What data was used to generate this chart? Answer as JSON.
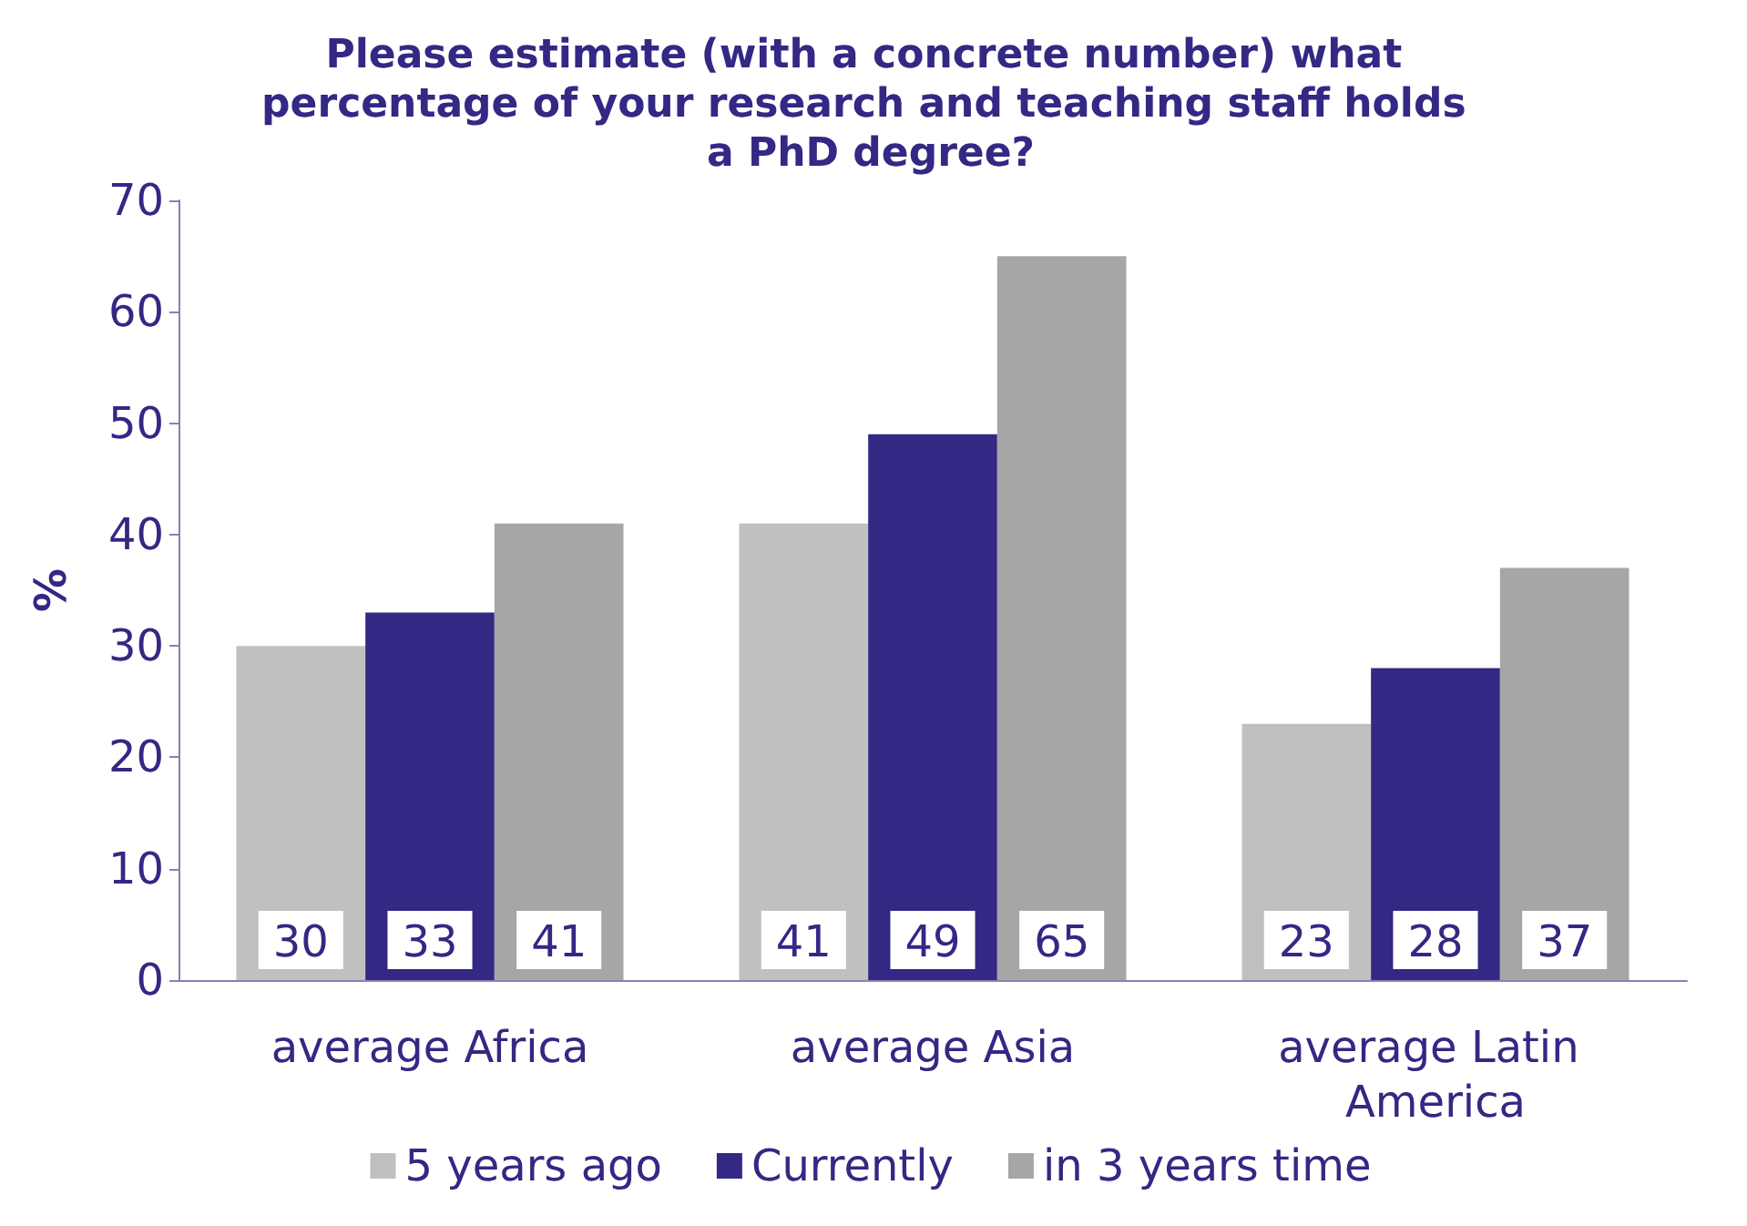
{
  "chart_data": {
    "type": "bar",
    "title": "Please estimate (with a concrete number) what percentage of your research and teaching staff holds a PhD degree?",
    "ylabel": "%",
    "categories": [
      "average Africa",
      "average Asia",
      "average Latin America"
    ],
    "series": [
      {
        "name": "5 years ago",
        "color": "#c0c0c0",
        "values": [
          30,
          41,
          23
        ]
      },
      {
        "name": "Currently",
        "color": "#332884",
        "values": [
          33,
          49,
          28
        ]
      },
      {
        "name": "in 3 years time",
        "color": "#a6a6a6",
        "values": [
          41,
          65,
          37
        ]
      }
    ],
    "ylim": [
      0,
      70
    ],
    "yticks": [
      0,
      10,
      20,
      30,
      40,
      50,
      60,
      70
    ],
    "grid": false,
    "legend": "bottom",
    "data_labels": true
  }
}
